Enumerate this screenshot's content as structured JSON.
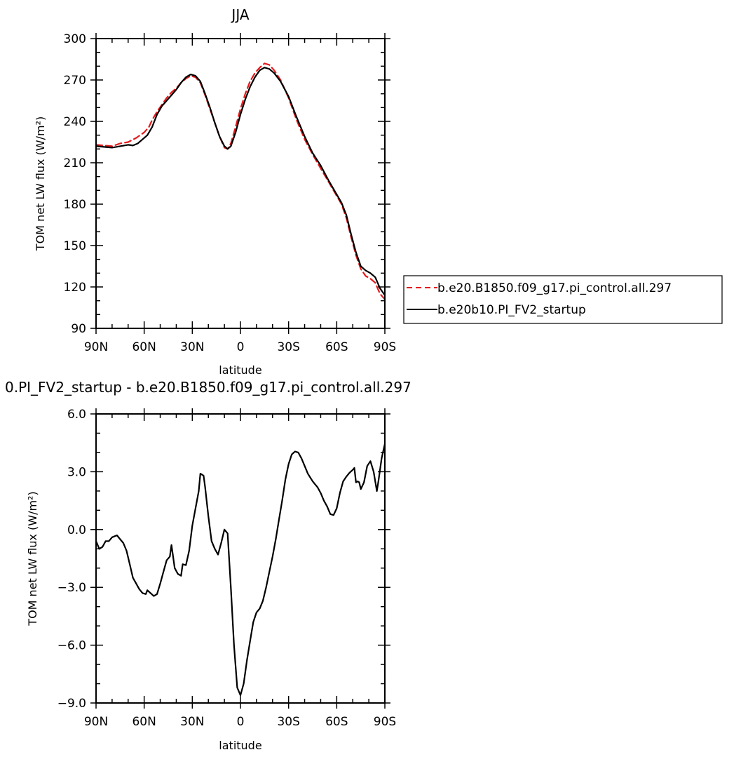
{
  "chart_data": [
    {
      "type": "line",
      "title": "JJA",
      "xlabel": "latitude",
      "ylabel": "TOM net LW flux (W/m²)",
      "xlim": [
        90,
        -90
      ],
      "ylim": [
        90,
        300
      ],
      "x_ticks": [
        90,
        60,
        30,
        0,
        -30,
        -60,
        -90
      ],
      "x_tick_labels": [
        "90N",
        "60N",
        "30N",
        "0",
        "30S",
        "60S",
        "90S"
      ],
      "y_ticks": [
        90,
        120,
        150,
        180,
        210,
        240,
        270,
        300
      ],
      "y_tick_labels": [
        "90",
        "120",
        "150",
        "180",
        "210",
        "240",
        "270",
        "300"
      ],
      "legend_position": "right",
      "series": [
        {
          "name": "b.e20.B1850.f09_g17.pi_control.all.297",
          "color": "#e41a1c",
          "dash": "dashed",
          "points": [
            [
              90,
              223
            ],
            [
              85,
              222.5
            ],
            [
              80,
              222
            ],
            [
              75,
              224
            ],
            [
              70,
              225
            ],
            [
              65,
              228
            ],
            [
              60,
              232
            ],
            [
              57,
              236
            ],
            [
              55,
              241
            ],
            [
              52,
              247
            ],
            [
              49,
              252
            ],
            [
              46,
              257
            ],
            [
              43,
              261
            ],
            [
              40,
              264
            ],
            [
              37,
              268
            ],
            [
              34,
              271
            ],
            [
              31,
              273
            ],
            [
              28,
              272
            ],
            [
              25,
              268
            ],
            [
              22,
              259
            ],
            [
              19,
              249
            ],
            [
              16,
              239
            ],
            [
              13,
              229
            ],
            [
              10,
              221
            ],
            [
              8,
              220
            ],
            [
              6,
              224
            ],
            [
              3,
              236
            ],
            [
              0,
              249
            ],
            [
              -3,
              260
            ],
            [
              -6,
              269
            ],
            [
              -9,
              275
            ],
            [
              -12,
              279
            ],
            [
              -15,
              282
            ],
            [
              -18,
              281
            ],
            [
              -21,
              277
            ],
            [
              -25,
              270
            ],
            [
              -30,
              257
            ],
            [
              -35,
              241
            ],
            [
              -40,
              227
            ],
            [
              -45,
              216
            ],
            [
              -50,
              206
            ],
            [
              -55,
              196
            ],
            [
              -60,
              186
            ],
            [
              -63,
              180
            ],
            [
              -66,
              170
            ],
            [
              -69,
              156
            ],
            [
              -72,
              143
            ],
            [
              -75,
              133
            ],
            [
              -78,
              128
            ],
            [
              -81,
              126
            ],
            [
              -84,
              123
            ],
            [
              -87,
              115
            ],
            [
              -90,
              111
            ]
          ]
        },
        {
          "name": "b.e20b10.PI_FV2_startup",
          "color": "#000000",
          "dash": "solid",
          "points": [
            [
              90,
              222
            ],
            [
              85,
              221.5
            ],
            [
              80,
              221
            ],
            [
              75,
              222
            ],
            [
              70,
              223
            ],
            [
              67,
              222.5
            ],
            [
              64,
              224
            ],
            [
              61,
              227
            ],
            [
              58,
              230
            ],
            [
              55,
              236
            ],
            [
              52,
              245
            ],
            [
              49,
              251
            ],
            [
              46,
              255
            ],
            [
              43,
              259
            ],
            [
              40,
              263
            ],
            [
              37,
              268
            ],
            [
              34,
              272
            ],
            [
              31,
              274
            ],
            [
              28,
              273
            ],
            [
              25,
              269
            ],
            [
              22,
              260
            ],
            [
              19,
              250
            ],
            [
              16,
              239
            ],
            [
              13,
              229
            ],
            [
              10,
              222
            ],
            [
              8,
              220
            ],
            [
              6,
              222
            ],
            [
              3,
              232
            ],
            [
              0,
              245
            ],
            [
              -3,
              256
            ],
            [
              -6,
              265
            ],
            [
              -9,
              272
            ],
            [
              -12,
              277
            ],
            [
              -15,
              279
            ],
            [
              -18,
              278
            ],
            [
              -21,
              275
            ],
            [
              -25,
              269
            ],
            [
              -30,
              258
            ],
            [
              -35,
              243
            ],
            [
              -40,
              229
            ],
            [
              -45,
              217
            ],
            [
              -50,
              208
            ],
            [
              -55,
              197
            ],
            [
              -60,
              187
            ],
            [
              -63,
              181
            ],
            [
              -66,
              172
            ],
            [
              -69,
              158
            ],
            [
              -72,
              145
            ],
            [
              -75,
              135
            ],
            [
              -78,
              132
            ],
            [
              -81,
              130
            ],
            [
              -84,
              127
            ],
            [
              -87,
              119
            ],
            [
              -90,
              114
            ]
          ]
        }
      ]
    },
    {
      "type": "line",
      "title": "0.PI_FV2_startup - b.e20.B1850.f09_g17.pi_control.all.297",
      "xlabel": "latitude",
      "ylabel": "TOM net LW flux (W/m²)",
      "xlim": [
        90,
        -90
      ],
      "ylim": [
        -9,
        6
      ],
      "x_ticks": [
        90,
        60,
        30,
        0,
        -30,
        -60,
        -90
      ],
      "x_tick_labels": [
        "90N",
        "60N",
        "30N",
        "0",
        "30S",
        "60S",
        "90S"
      ],
      "y_ticks": [
        -9,
        -6,
        -3,
        0,
        3,
        6
      ],
      "y_tick_labels": [
        "-9.0",
        "-6.0",
        "-3.0",
        "0.0",
        "3.0",
        "6.0"
      ],
      "series": [
        {
          "color": "#000000",
          "dash": "solid",
          "points": [
            [
              90,
              -0.6
            ],
            [
              88,
              -1.0
            ],
            [
              86,
              -0.9
            ],
            [
              84,
              -0.6
            ],
            [
              82,
              -0.6
            ],
            [
              80,
              -0.4
            ],
            [
              77,
              -0.3
            ],
            [
              75,
              -0.5
            ],
            [
              73,
              -0.7
            ],
            [
              71,
              -1.1
            ],
            [
              69,
              -1.8
            ],
            [
              67,
              -2.5
            ],
            [
              65,
              -2.8
            ],
            [
              63,
              -3.1
            ],
            [
              61,
              -3.3
            ],
            [
              59,
              -3.35
            ],
            [
              58,
              -3.15
            ],
            [
              56,
              -3.3
            ],
            [
              54,
              -3.45
            ],
            [
              52,
              -3.35
            ],
            [
              50,
              -2.8
            ],
            [
              48,
              -2.2
            ],
            [
              46,
              -1.6
            ],
            [
              44,
              -1.4
            ],
            [
              43,
              -0.8
            ],
            [
              41,
              -2.0
            ],
            [
              39,
              -2.3
            ],
            [
              37,
              -2.4
            ],
            [
              36,
              -1.8
            ],
            [
              34,
              -1.85
            ],
            [
              32,
              -1.1
            ],
            [
              30,
              0.2
            ],
            [
              28,
              1.1
            ],
            [
              26,
              2.0
            ],
            [
              25,
              2.9
            ],
            [
              23,
              2.8
            ],
            [
              22,
              2.2
            ],
            [
              20,
              0.7
            ],
            [
              18,
              -0.6
            ],
            [
              16,
              -1.0
            ],
            [
              14,
              -1.3
            ],
            [
              12,
              -0.7
            ],
            [
              10,
              0.0
            ],
            [
              8,
              -0.2
            ],
            [
              6,
              -3.0
            ],
            [
              4,
              -6.0
            ],
            [
              2,
              -8.2
            ],
            [
              0,
              -8.6
            ],
            [
              -2,
              -8.0
            ],
            [
              -4,
              -6.8
            ],
            [
              -6,
              -5.8
            ],
            [
              -8,
              -4.8
            ],
            [
              -10,
              -4.3
            ],
            [
              -12,
              -4.1
            ],
            [
              -14,
              -3.7
            ],
            [
              -16,
              -3.0
            ],
            [
              -18,
              -2.2
            ],
            [
              -20,
              -1.4
            ],
            [
              -22,
              -0.5
            ],
            [
              -24,
              0.5
            ],
            [
              -26,
              1.5
            ],
            [
              -28,
              2.6
            ],
            [
              -30,
              3.4
            ],
            [
              -32,
              3.9
            ],
            [
              -34,
              4.05
            ],
            [
              -36,
              4.0
            ],
            [
              -38,
              3.7
            ],
            [
              -40,
              3.3
            ],
            [
              -42,
              2.9
            ],
            [
              -45,
              2.5
            ],
            [
              -48,
              2.2
            ],
            [
              -50,
              1.9
            ],
            [
              -52,
              1.5
            ],
            [
              -54,
              1.2
            ],
            [
              -56,
              0.8
            ],
            [
              -58,
              0.75
            ],
            [
              -60,
              1.1
            ],
            [
              -62,
              1.9
            ],
            [
              -64,
              2.5
            ],
            [
              -66,
              2.75
            ],
            [
              -68,
              2.95
            ],
            [
              -70,
              3.1
            ],
            [
              -71,
              3.2
            ],
            [
              -72,
              2.45
            ],
            [
              -73,
              2.5
            ],
            [
              -74,
              2.45
            ],
            [
              -75,
              2.1
            ],
            [
              -77,
              2.45
            ],
            [
              -79,
              3.3
            ],
            [
              -81,
              3.55
            ],
            [
              -83,
              3.0
            ],
            [
              -85,
              2.0
            ],
            [
              -86,
              2.5
            ],
            [
              -88,
              3.7
            ],
            [
              -90,
              4.45
            ]
          ]
        }
      ]
    }
  ]
}
